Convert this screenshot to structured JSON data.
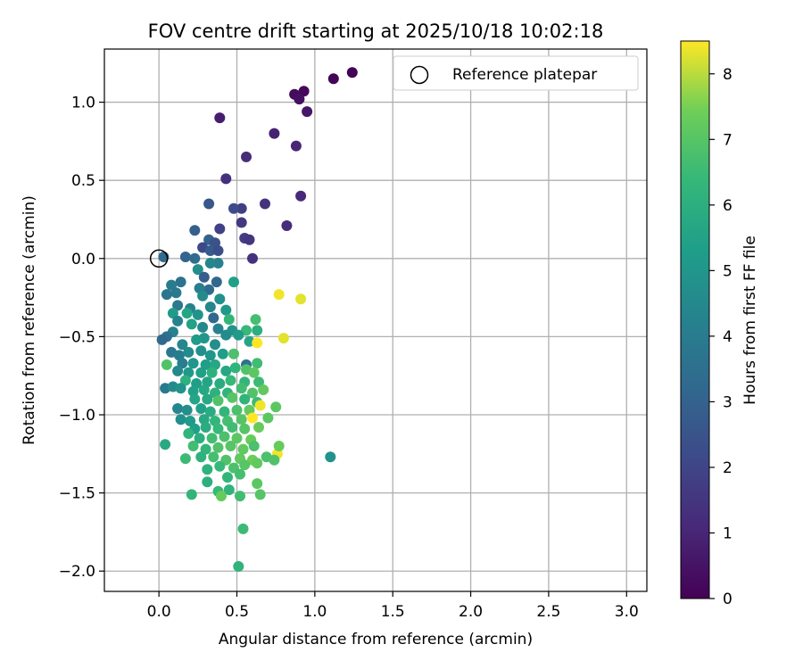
{
  "chart_data": {
    "type": "scatter",
    "title": "FOV centre drift starting at 2025/10/18 10:02:18",
    "xlabel": "Angular distance from reference (arcmin)",
    "ylabel": "Rotation from reference (arcmin)",
    "xlim": [
      -0.35,
      3.13
    ],
    "ylim": [
      -2.13,
      1.34
    ],
    "xticks": [
      0.0,
      0.5,
      1.0,
      1.5,
      2.0,
      2.5,
      3.0
    ],
    "xtick_labels": [
      "0.0",
      "0.5",
      "1.0",
      "1.5",
      "2.0",
      "2.5",
      "3.0"
    ],
    "yticks": [
      -2.0,
      -1.5,
      -1.0,
      -0.5,
      0.0,
      0.5,
      1.0
    ],
    "ytick_labels": [
      "−2.0",
      "−1.5",
      "−1.0",
      "−0.5",
      "0.0",
      "0.5",
      "1.0"
    ],
    "grid": true,
    "legend": {
      "position": "top-right",
      "entries": [
        "Reference platepar"
      ]
    },
    "reference_point": {
      "x": 0.0,
      "y": 0.0,
      "label": "Reference platepar"
    },
    "colorbar": {
      "label": "Hours from first FF file",
      "range": [
        0,
        8.5
      ],
      "ticks": [
        0,
        1,
        2,
        3,
        4,
        5,
        6,
        7,
        8
      ],
      "tick_labels": [
        "0",
        "1",
        "2",
        "3",
        "4",
        "5",
        "6",
        "7",
        "8"
      ],
      "colormap": "viridis"
    },
    "points": [
      [
        1.24,
        1.19,
        0.05
      ],
      [
        1.12,
        1.15,
        0.1
      ],
      [
        0.93,
        1.07,
        0.2
      ],
      [
        0.87,
        1.05,
        0.3
      ],
      [
        0.9,
        1.02,
        0.4
      ],
      [
        0.95,
        0.94,
        0.6
      ],
      [
        0.39,
        0.9,
        0.8
      ],
      [
        0.74,
        0.8,
        0.9
      ],
      [
        0.88,
        0.72,
        1.0
      ],
      [
        0.56,
        0.65,
        1.2
      ],
      [
        0.43,
        0.51,
        1.3
      ],
      [
        0.91,
        0.4,
        1.1
      ],
      [
        0.68,
        0.35,
        1.4
      ],
      [
        0.53,
        0.32,
        1.8
      ],
      [
        0.48,
        0.32,
        2.2
      ],
      [
        0.32,
        0.35,
        2.6
      ],
      [
        0.53,
        0.23,
        1.6
      ],
      [
        0.82,
        0.21,
        1.2
      ],
      [
        0.23,
        0.18,
        2.9
      ],
      [
        0.39,
        0.19,
        1.9
      ],
      [
        0.55,
        0.13,
        1.7
      ],
      [
        0.58,
        0.12,
        1.5
      ],
      [
        0.32,
        0.12,
        3.0
      ],
      [
        0.36,
        0.1,
        2.4
      ],
      [
        0.28,
        0.07,
        2.1
      ],
      [
        0.33,
        0.05,
        2.7
      ],
      [
        0.38,
        0.05,
        2.3
      ],
      [
        0.6,
        0.0,
        1.4
      ],
      [
        0.17,
        0.01,
        3.1
      ],
      [
        0.03,
        0.01,
        3.3
      ],
      [
        0.23,
        0.0,
        3.4
      ],
      [
        0.38,
        -0.03,
        4.2
      ],
      [
        0.33,
        -0.03,
        4.4
      ],
      [
        0.25,
        -0.07,
        4.7
      ],
      [
        0.29,
        -0.12,
        2.8
      ],
      [
        0.37,
        -0.15,
        3.2
      ],
      [
        0.14,
        -0.15,
        3.6
      ],
      [
        0.08,
        -0.17,
        4.0
      ],
      [
        0.48,
        -0.15,
        5.4
      ],
      [
        0.32,
        -0.2,
        3.3
      ],
      [
        0.26,
        -0.19,
        4.1
      ],
      [
        0.11,
        -0.22,
        3.9
      ],
      [
        0.05,
        -0.23,
        3.7
      ],
      [
        0.28,
        -0.24,
        4.6
      ],
      [
        0.39,
        -0.26,
        4.8
      ],
      [
        0.12,
        -0.3,
        3.9
      ],
      [
        0.2,
        -0.32,
        4.3
      ],
      [
        0.33,
        -0.31,
        4.4
      ],
      [
        0.43,
        -0.33,
        5.1
      ],
      [
        0.09,
        -0.35,
        5.2
      ],
      [
        0.25,
        -0.36,
        4.9
      ],
      [
        0.18,
        -0.35,
        5.6
      ],
      [
        0.12,
        -0.4,
        4.3
      ],
      [
        0.35,
        -0.38,
        3.2
      ],
      [
        0.45,
        -0.39,
        6.3
      ],
      [
        0.21,
        -0.42,
        5.5
      ],
      [
        0.28,
        -0.44,
        4.5
      ],
      [
        0.38,
        -0.45,
        4.3
      ],
      [
        0.47,
        -0.46,
        4.9
      ],
      [
        0.62,
        -0.39,
        6.7
      ],
      [
        0.56,
        -0.46,
        6.4
      ],
      [
        0.63,
        -0.46,
        6.0
      ],
      [
        0.09,
        -0.47,
        4.2
      ],
      [
        0.05,
        -0.5,
        3.5
      ],
      [
        0.02,
        -0.52,
        3.2
      ],
      [
        0.29,
        -0.51,
        5.0
      ],
      [
        0.43,
        -0.49,
        4.6
      ],
      [
        0.51,
        -0.49,
        5.2
      ],
      [
        0.15,
        -0.55,
        4.4
      ],
      [
        0.24,
        -0.52,
        5.2
      ],
      [
        0.36,
        -0.55,
        4.7
      ],
      [
        0.58,
        -0.53,
        5.6
      ],
      [
        0.63,
        -0.54,
        8.5
      ],
      [
        0.77,
        -0.23,
        8.4
      ],
      [
        0.8,
        -0.51,
        8.3
      ],
      [
        0.91,
        -0.26,
        8.3
      ],
      [
        0.08,
        -0.6,
        3.8
      ],
      [
        0.13,
        -0.62,
        4.0
      ],
      [
        0.19,
        -0.6,
        4.6
      ],
      [
        0.27,
        -0.59,
        4.8
      ],
      [
        0.33,
        -0.62,
        5.0
      ],
      [
        0.41,
        -0.61,
        5.3
      ],
      [
        0.48,
        -0.61,
        6.8
      ],
      [
        0.15,
        -0.67,
        4.1
      ],
      [
        0.22,
        -0.67,
        5.0
      ],
      [
        0.3,
        -0.68,
        5.3
      ],
      [
        0.36,
        -0.68,
        5.7
      ],
      [
        0.05,
        -0.68,
        6.9
      ],
      [
        0.56,
        -0.68,
        3.6
      ],
      [
        0.63,
        -0.67,
        6.6
      ],
      [
        0.12,
        -0.72,
        4.5
      ],
      [
        0.19,
        -0.73,
        5.1
      ],
      [
        0.27,
        -0.73,
        5.4
      ],
      [
        0.34,
        -0.73,
        6.1
      ],
      [
        0.43,
        -0.72,
        5.7
      ],
      [
        0.49,
        -0.7,
        6.2
      ],
      [
        0.56,
        -0.71,
        6.9
      ],
      [
        0.61,
        -0.73,
        7.1
      ],
      [
        0.17,
        -0.78,
        6.1
      ],
      [
        0.24,
        -0.8,
        5.3
      ],
      [
        0.31,
        -0.79,
        5.6
      ],
      [
        0.39,
        -0.8,
        5.9
      ],
      [
        0.46,
        -0.78,
        6.4
      ],
      [
        0.55,
        -0.79,
        6.3
      ],
      [
        0.64,
        -0.79,
        6.5
      ],
      [
        0.04,
        -0.83,
        3.9
      ],
      [
        0.09,
        -0.82,
        4.6
      ],
      [
        0.14,
        -0.83,
        4.9
      ],
      [
        0.22,
        -0.85,
        5.4
      ],
      [
        0.29,
        -0.84,
        5.7
      ],
      [
        0.36,
        -0.86,
        6.1
      ],
      [
        0.44,
        -0.86,
        6.2
      ],
      [
        0.53,
        -0.83,
        6.6
      ],
      [
        0.6,
        -0.86,
        6.9
      ],
      [
        0.67,
        -0.84,
        7.2
      ],
      [
        0.23,
        -0.9,
        5.6
      ],
      [
        0.31,
        -0.9,
        5.8
      ],
      [
        0.38,
        -0.91,
        6.9
      ],
      [
        0.47,
        -0.89,
        7.0
      ],
      [
        0.55,
        -0.9,
        6.2
      ],
      [
        0.63,
        -0.92,
        6.5
      ],
      [
        0.12,
        -0.96,
        4.4
      ],
      [
        0.18,
        -0.97,
        4.7
      ],
      [
        0.27,
        -0.96,
        5.4
      ],
      [
        0.33,
        -0.98,
        5.9
      ],
      [
        0.42,
        -0.98,
        6.3
      ],
      [
        0.5,
        -0.97,
        6.8
      ],
      [
        0.58,
        -0.97,
        7.2
      ],
      [
        0.65,
        -0.94,
        8.4
      ],
      [
        0.75,
        -0.95,
        7.1
      ],
      [
        0.14,
        -1.03,
        4.8
      ],
      [
        0.2,
        -1.04,
        5.2
      ],
      [
        0.29,
        -1.03,
        5.8
      ],
      [
        0.36,
        -1.04,
        6.3
      ],
      [
        0.44,
        -1.04,
        6.7
      ],
      [
        0.53,
        -1.03,
        7.0
      ],
      [
        0.6,
        -1.02,
        8.5
      ],
      [
        0.7,
        -1.02,
        7.1
      ],
      [
        0.23,
        -1.09,
        5.4
      ],
      [
        0.3,
        -1.08,
        5.9
      ],
      [
        0.38,
        -1.09,
        6.4
      ],
      [
        0.47,
        -1.08,
        6.6
      ],
      [
        0.55,
        -1.09,
        7.0
      ],
      [
        0.64,
        -1.08,
        7.3
      ],
      [
        0.19,
        -1.12,
        6.2
      ],
      [
        0.26,
        -1.15,
        6.0
      ],
      [
        0.34,
        -1.15,
        6.6
      ],
      [
        0.42,
        -1.14,
        6.8
      ],
      [
        0.5,
        -1.15,
        7.1
      ],
      [
        0.59,
        -1.16,
        7.3
      ],
      [
        0.04,
        -1.19,
        5.8
      ],
      [
        0.22,
        -1.2,
        6.6
      ],
      [
        0.3,
        -1.22,
        6.3
      ],
      [
        0.38,
        -1.21,
        6.9
      ],
      [
        0.46,
        -1.2,
        7.0
      ],
      [
        0.54,
        -1.22,
        7.2
      ],
      [
        0.61,
        -1.2,
        6.8
      ],
      [
        0.17,
        -1.28,
        6.5
      ],
      [
        0.27,
        -1.27,
        6.1
      ],
      [
        0.35,
        -1.27,
        6.7
      ],
      [
        0.43,
        -1.29,
        6.9
      ],
      [
        0.52,
        -1.28,
        7.2
      ],
      [
        0.6,
        -1.29,
        7.4
      ],
      [
        0.69,
        -1.27,
        6.8
      ],
      [
        0.76,
        -1.25,
        8.4
      ],
      [
        0.77,
        -1.2,
        7.3
      ],
      [
        0.74,
        -1.29,
        6.9
      ],
      [
        1.1,
        -1.27,
        4.9
      ],
      [
        0.31,
        -1.35,
        6.1
      ],
      [
        0.39,
        -1.33,
        6.4
      ],
      [
        0.48,
        -1.34,
        6.8
      ],
      [
        0.55,
        -1.32,
        7.0
      ],
      [
        0.63,
        -1.31,
        7.2
      ],
      [
        0.44,
        -1.4,
        6.3
      ],
      [
        0.52,
        -1.38,
        6.7
      ],
      [
        0.31,
        -1.43,
        6.0
      ],
      [
        0.63,
        -1.44,
        7.1
      ],
      [
        0.38,
        -1.49,
        6.4
      ],
      [
        0.45,
        -1.48,
        6.2
      ],
      [
        0.52,
        -1.52,
        6.6
      ],
      [
        0.21,
        -1.51,
        6.3
      ],
      [
        0.65,
        -1.51,
        7.0
      ],
      [
        0.4,
        -1.52,
        7.3
      ],
      [
        0.54,
        -1.73,
        6.5
      ],
      [
        0.51,
        -1.97,
        6.2
      ]
    ]
  }
}
